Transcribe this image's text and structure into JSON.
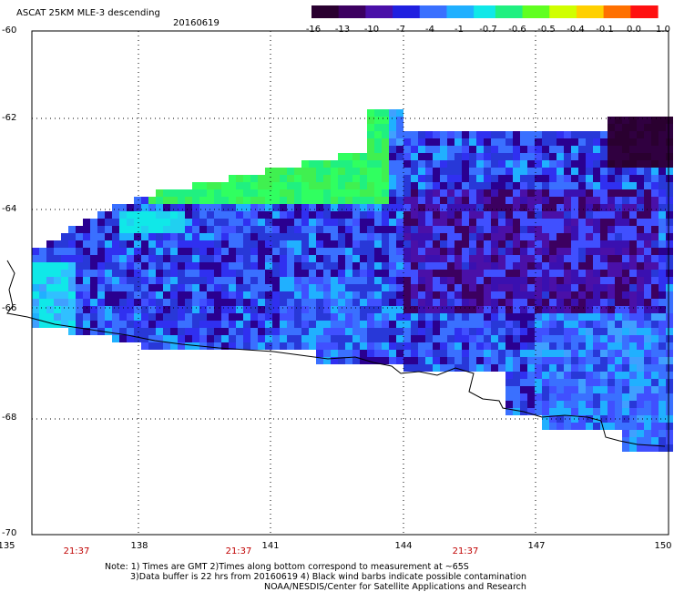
{
  "header": {
    "title": "ASCAT 25KM MLE-3 descending",
    "date": "20160619"
  },
  "colorbar": {
    "labels": [
      "-16",
      "-13",
      "-10",
      "-7",
      "-4",
      "-1",
      "-0.7",
      "-0.6",
      "-0.5",
      "-0.4",
      "-0.1",
      "0.0",
      "1.0"
    ],
    "colors": [
      "#2a0030",
      "#3c0060",
      "#4a10a8",
      "#2020e0",
      "#3a70ff",
      "#20b0ff",
      "#10e8e8",
      "#20f080",
      "#60ff20",
      "#d0ff00",
      "#ffd000",
      "#ff7000",
      "#ff1010"
    ]
  },
  "axes": {
    "lat_labels": [
      "-60",
      "-62",
      "-64",
      "-66",
      "-68",
      "-70"
    ],
    "lon_labels": [
      "135",
      "138",
      "141",
      "144",
      "147",
      "150"
    ],
    "time_labels": [
      "21:37",
      "21:37",
      "21:37"
    ]
  },
  "notes": {
    "line1": "Note: 1) Times are GMT 2)Times along bottom correspond to measurement at ~65S",
    "line2": "3)Data buffer is 22 hrs from 20160619 4) Black wind barbs indicate possible contamination",
    "line3": "NOAA/NESDIS/Center for Satellite Applications and Research"
  },
  "map": {
    "lat_range": [
      -70,
      -60
    ],
    "lon_range": [
      135,
      150
    ],
    "coastline_color": "#000000",
    "grid": "dotted"
  }
}
